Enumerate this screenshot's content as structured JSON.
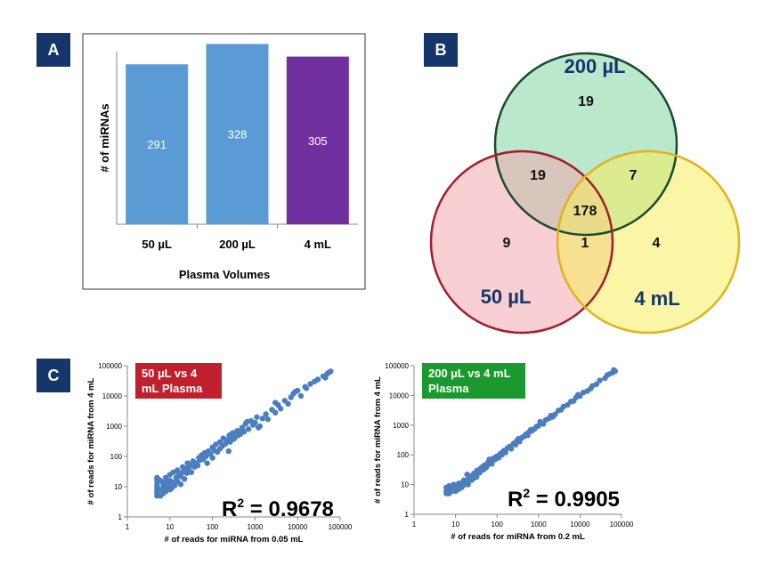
{
  "panels": {
    "a": "A",
    "b": "B",
    "c": "C"
  },
  "chart_data": [
    {
      "id": "A",
      "type": "bar",
      "categories": [
        "50 µL",
        "200 µL",
        "4 mL"
      ],
      "values": [
        291,
        328,
        305
      ],
      "data_labels": [
        "291",
        "328",
        "305"
      ],
      "colors": [
        "#5b9bd5",
        "#5b9bd5",
        "#7030a0"
      ],
      "title": "",
      "xlabel": "Plasma Volumes",
      "ylabel": "# of miRNAs",
      "ylim": [
        0,
        340
      ],
      "grid": false,
      "legend": "none"
    },
    {
      "id": "B",
      "type": "venn",
      "sets": [
        {
          "name": "200 µL",
          "color": "#7fd6a4",
          "edge": "#1b4a2e"
        },
        {
          "name": "50 µL",
          "color": "#f3a7ae",
          "edge": "#a0202b"
        },
        {
          "name": "4 mL",
          "color": "#f6ee5c",
          "edge": "#e2b21c"
        }
      ],
      "regions": {
        "only_200uL": "19",
        "only_50uL": "9",
        "only_4mL": "4",
        "50uL_and_200uL": "19",
        "200uL_and_4mL": "7",
        "50uL_and_4mL": "1",
        "all_three": "178"
      }
    },
    {
      "id": "C-left",
      "type": "scatter",
      "badge_line1": "50 µL vs 4",
      "badge_line2": "mL Plasma",
      "badge_color": "#c0202e",
      "r2_label": "R",
      "r2_sup": "2",
      "r2_value": " = 0.9678",
      "xlabel": "# of reads for miRNA from 0.05 mL",
      "ylabel": "# of reads for miRNA from 4 mL",
      "xscale": "log",
      "yscale": "log",
      "xlim": [
        1,
        100000
      ],
      "ylim": [
        1,
        100000
      ],
      "xticks": [
        "1",
        "10",
        "100",
        "1000",
        "10000",
        "100000"
      ],
      "yticks": [
        "1",
        "10",
        "100",
        "1000",
        "10000",
        "100000"
      ],
      "point_color": "#4a7ebf",
      "points": [
        [
          5,
          5
        ],
        [
          5,
          6
        ],
        [
          5,
          7
        ],
        [
          5,
          8
        ],
        [
          5,
          10
        ],
        [
          5,
          12
        ],
        [
          5,
          15
        ],
        [
          5,
          18
        ],
        [
          5,
          20
        ],
        [
          6,
          5
        ],
        [
          6,
          8
        ],
        [
          6,
          16
        ],
        [
          7,
          6
        ],
        [
          7,
          9
        ],
        [
          7,
          12
        ],
        [
          8,
          7
        ],
        [
          8,
          15
        ],
        [
          8,
          20
        ],
        [
          9,
          10
        ],
        [
          10,
          8
        ],
        [
          10,
          12
        ],
        [
          10,
          16
        ],
        [
          10,
          25
        ],
        [
          11,
          9
        ],
        [
          12,
          14
        ],
        [
          12,
          30
        ],
        [
          13,
          11
        ],
        [
          14,
          20
        ],
        [
          15,
          15
        ],
        [
          15,
          35
        ],
        [
          16,
          25
        ],
        [
          18,
          22
        ],
        [
          18,
          12
        ],
        [
          20,
          30
        ],
        [
          20,
          45
        ],
        [
          22,
          18
        ],
        [
          24,
          40
        ],
        [
          25,
          28
        ],
        [
          26,
          60
        ],
        [
          28,
          35
        ],
        [
          30,
          50
        ],
        [
          32,
          30
        ],
        [
          35,
          70
        ],
        [
          38,
          45
        ],
        [
          40,
          60
        ],
        [
          45,
          50
        ],
        [
          48,
          90
        ],
        [
          50,
          75
        ],
        [
          55,
          110
        ],
        [
          60,
          80
        ],
        [
          65,
          130
        ],
        [
          70,
          100
        ],
        [
          75,
          60
        ],
        [
          80,
          150
        ],
        [
          90,
          120
        ],
        [
          100,
          200
        ],
        [
          100,
          90
        ],
        [
          110,
          160
        ],
        [
          120,
          250
        ],
        [
          130,
          140
        ],
        [
          150,
          300
        ],
        [
          150,
          180
        ],
        [
          170,
          220
        ],
        [
          180,
          400
        ],
        [
          200,
          260
        ],
        [
          220,
          350
        ],
        [
          250,
          500
        ],
        [
          260,
          300
        ],
        [
          280,
          420
        ],
        [
          300,
          600
        ],
        [
          320,
          380
        ],
        [
          350,
          450
        ],
        [
          380,
          700
        ],
        [
          400,
          500
        ],
        [
          450,
          550
        ],
        [
          500,
          900
        ],
        [
          550,
          650
        ],
        [
          600,
          1200
        ],
        [
          700,
          800
        ],
        [
          800,
          1500
        ],
        [
          900,
          1100
        ],
        [
          1000,
          1300
        ],
        [
          1100,
          2000
        ],
        [
          1200,
          900
        ],
        [
          1500,
          1800
        ],
        [
          1800,
          2500
        ],
        [
          2000,
          1700
        ],
        [
          2500,
          3500
        ],
        [
          3000,
          2800
        ],
        [
          3500,
          5000
        ],
        [
          4000,
          3800
        ],
        [
          5000,
          7000
        ],
        [
          6000,
          5500
        ],
        [
          7000,
          9000
        ],
        [
          8000,
          12000
        ],
        [
          10000,
          15000
        ],
        [
          12000,
          10000
        ],
        [
          15000,
          20000
        ],
        [
          20000,
          25000
        ],
        [
          30000,
          35000
        ],
        [
          40000,
          45000
        ],
        [
          50000,
          55000
        ],
        [
          55000,
          60000
        ],
        [
          60000,
          65000
        ],
        [
          45000,
          40000
        ],
        [
          25000,
          30000
        ],
        [
          9000,
          14000
        ],
        [
          16000,
          18000
        ],
        [
          3000,
          6000
        ],
        [
          1300,
          1000
        ],
        [
          650,
          1400
        ],
        [
          420,
          700
        ],
        [
          240,
          150
        ]
      ]
    },
    {
      "id": "C-right",
      "type": "scatter",
      "badge_line1": "200 µL vs 4 mL",
      "badge_line2": "Plasma",
      "badge_color": "#1a9a2e",
      "r2_label": "R",
      "r2_sup": "2",
      "r2_value": " = 0.9905",
      "xlabel": "# of reads for miRNA from 0.2 mL",
      "ylabel": "# of reads for miRNA from 4 mL",
      "xscale": "log",
      "yscale": "log",
      "xlim": [
        1,
        100000
      ],
      "ylim": [
        1,
        100000
      ],
      "xticks": [
        "1",
        "10",
        "100",
        "1000",
        "10000",
        "100000"
      ],
      "yticks": [
        "1",
        "10",
        "100",
        "1000",
        "10000",
        "100000"
      ],
      "point_color": "#4a7ebf",
      "points": [
        [
          6,
          5
        ],
        [
          6,
          6
        ],
        [
          6,
          8
        ],
        [
          7,
          5
        ],
        [
          7,
          7
        ],
        [
          7,
          9
        ],
        [
          8,
          6
        ],
        [
          8,
          8
        ],
        [
          9,
          7
        ],
        [
          9,
          10
        ],
        [
          10,
          8
        ],
        [
          10,
          6
        ],
        [
          11,
          9
        ],
        [
          12,
          7
        ],
        [
          12,
          11
        ],
        [
          13,
          10
        ],
        [
          14,
          8
        ],
        [
          15,
          12
        ],
        [
          15,
          9
        ],
        [
          16,
          14
        ],
        [
          17,
          11
        ],
        [
          18,
          13
        ],
        [
          20,
          15
        ],
        [
          20,
          10
        ],
        [
          22,
          18
        ],
        [
          24,
          14
        ],
        [
          25,
          20
        ],
        [
          27,
          16
        ],
        [
          28,
          24
        ],
        [
          30,
          22
        ],
        [
          32,
          18
        ],
        [
          35,
          28
        ],
        [
          38,
          25
        ],
        [
          40,
          35
        ],
        [
          42,
          30
        ],
        [
          45,
          40
        ],
        [
          48,
          32
        ],
        [
          50,
          45
        ],
        [
          55,
          38
        ],
        [
          60,
          55
        ],
        [
          62,
          48
        ],
        [
          70,
          60
        ],
        [
          75,
          50
        ],
        [
          80,
          75
        ],
        [
          90,
          70
        ],
        [
          95,
          85
        ],
        [
          100,
          90
        ],
        [
          110,
          80
        ],
        [
          120,
          110
        ],
        [
          130,
          100
        ],
        [
          150,
          140
        ],
        [
          160,
          120
        ],
        [
          180,
          170
        ],
        [
          200,
          190
        ],
        [
          220,
          160
        ],
        [
          250,
          240
        ],
        [
          280,
          220
        ],
        [
          300,
          300
        ],
        [
          350,
          280
        ],
        [
          400,
          380
        ],
        [
          450,
          420
        ],
        [
          500,
          500
        ],
        [
          550,
          450
        ],
        [
          600,
          600
        ],
        [
          700,
          650
        ],
        [
          800,
          750
        ],
        [
          900,
          900
        ],
        [
          1000,
          950
        ],
        [
          1100,
          1300
        ],
        [
          1300,
          1100
        ],
        [
          1500,
          1500
        ],
        [
          1800,
          1700
        ],
        [
          2000,
          2100
        ],
        [
          2500,
          2300
        ],
        [
          3000,
          3100
        ],
        [
          3500,
          3300
        ],
        [
          4000,
          4200
        ],
        [
          5000,
          4800
        ],
        [
          6000,
          6200
        ],
        [
          7000,
          6500
        ],
        [
          8000,
          8500
        ],
        [
          10000,
          9500
        ],
        [
          12000,
          12500
        ],
        [
          15000,
          14000
        ],
        [
          20000,
          21000
        ],
        [
          25000,
          24000
        ],
        [
          30000,
          32000
        ],
        [
          40000,
          38000
        ],
        [
          50000,
          52000
        ],
        [
          60000,
          58000
        ],
        [
          70000,
          65000
        ],
        [
          65000,
          72000
        ],
        [
          45000,
          48000
        ],
        [
          18000,
          17000
        ],
        [
          9000,
          10500
        ],
        [
          2200,
          1900
        ],
        [
          650,
          700
        ],
        [
          330,
          350
        ],
        [
          140,
          130
        ],
        [
          65,
          70
        ],
        [
          33,
          30
        ],
        [
          19,
          22
        ]
      ]
    }
  ]
}
